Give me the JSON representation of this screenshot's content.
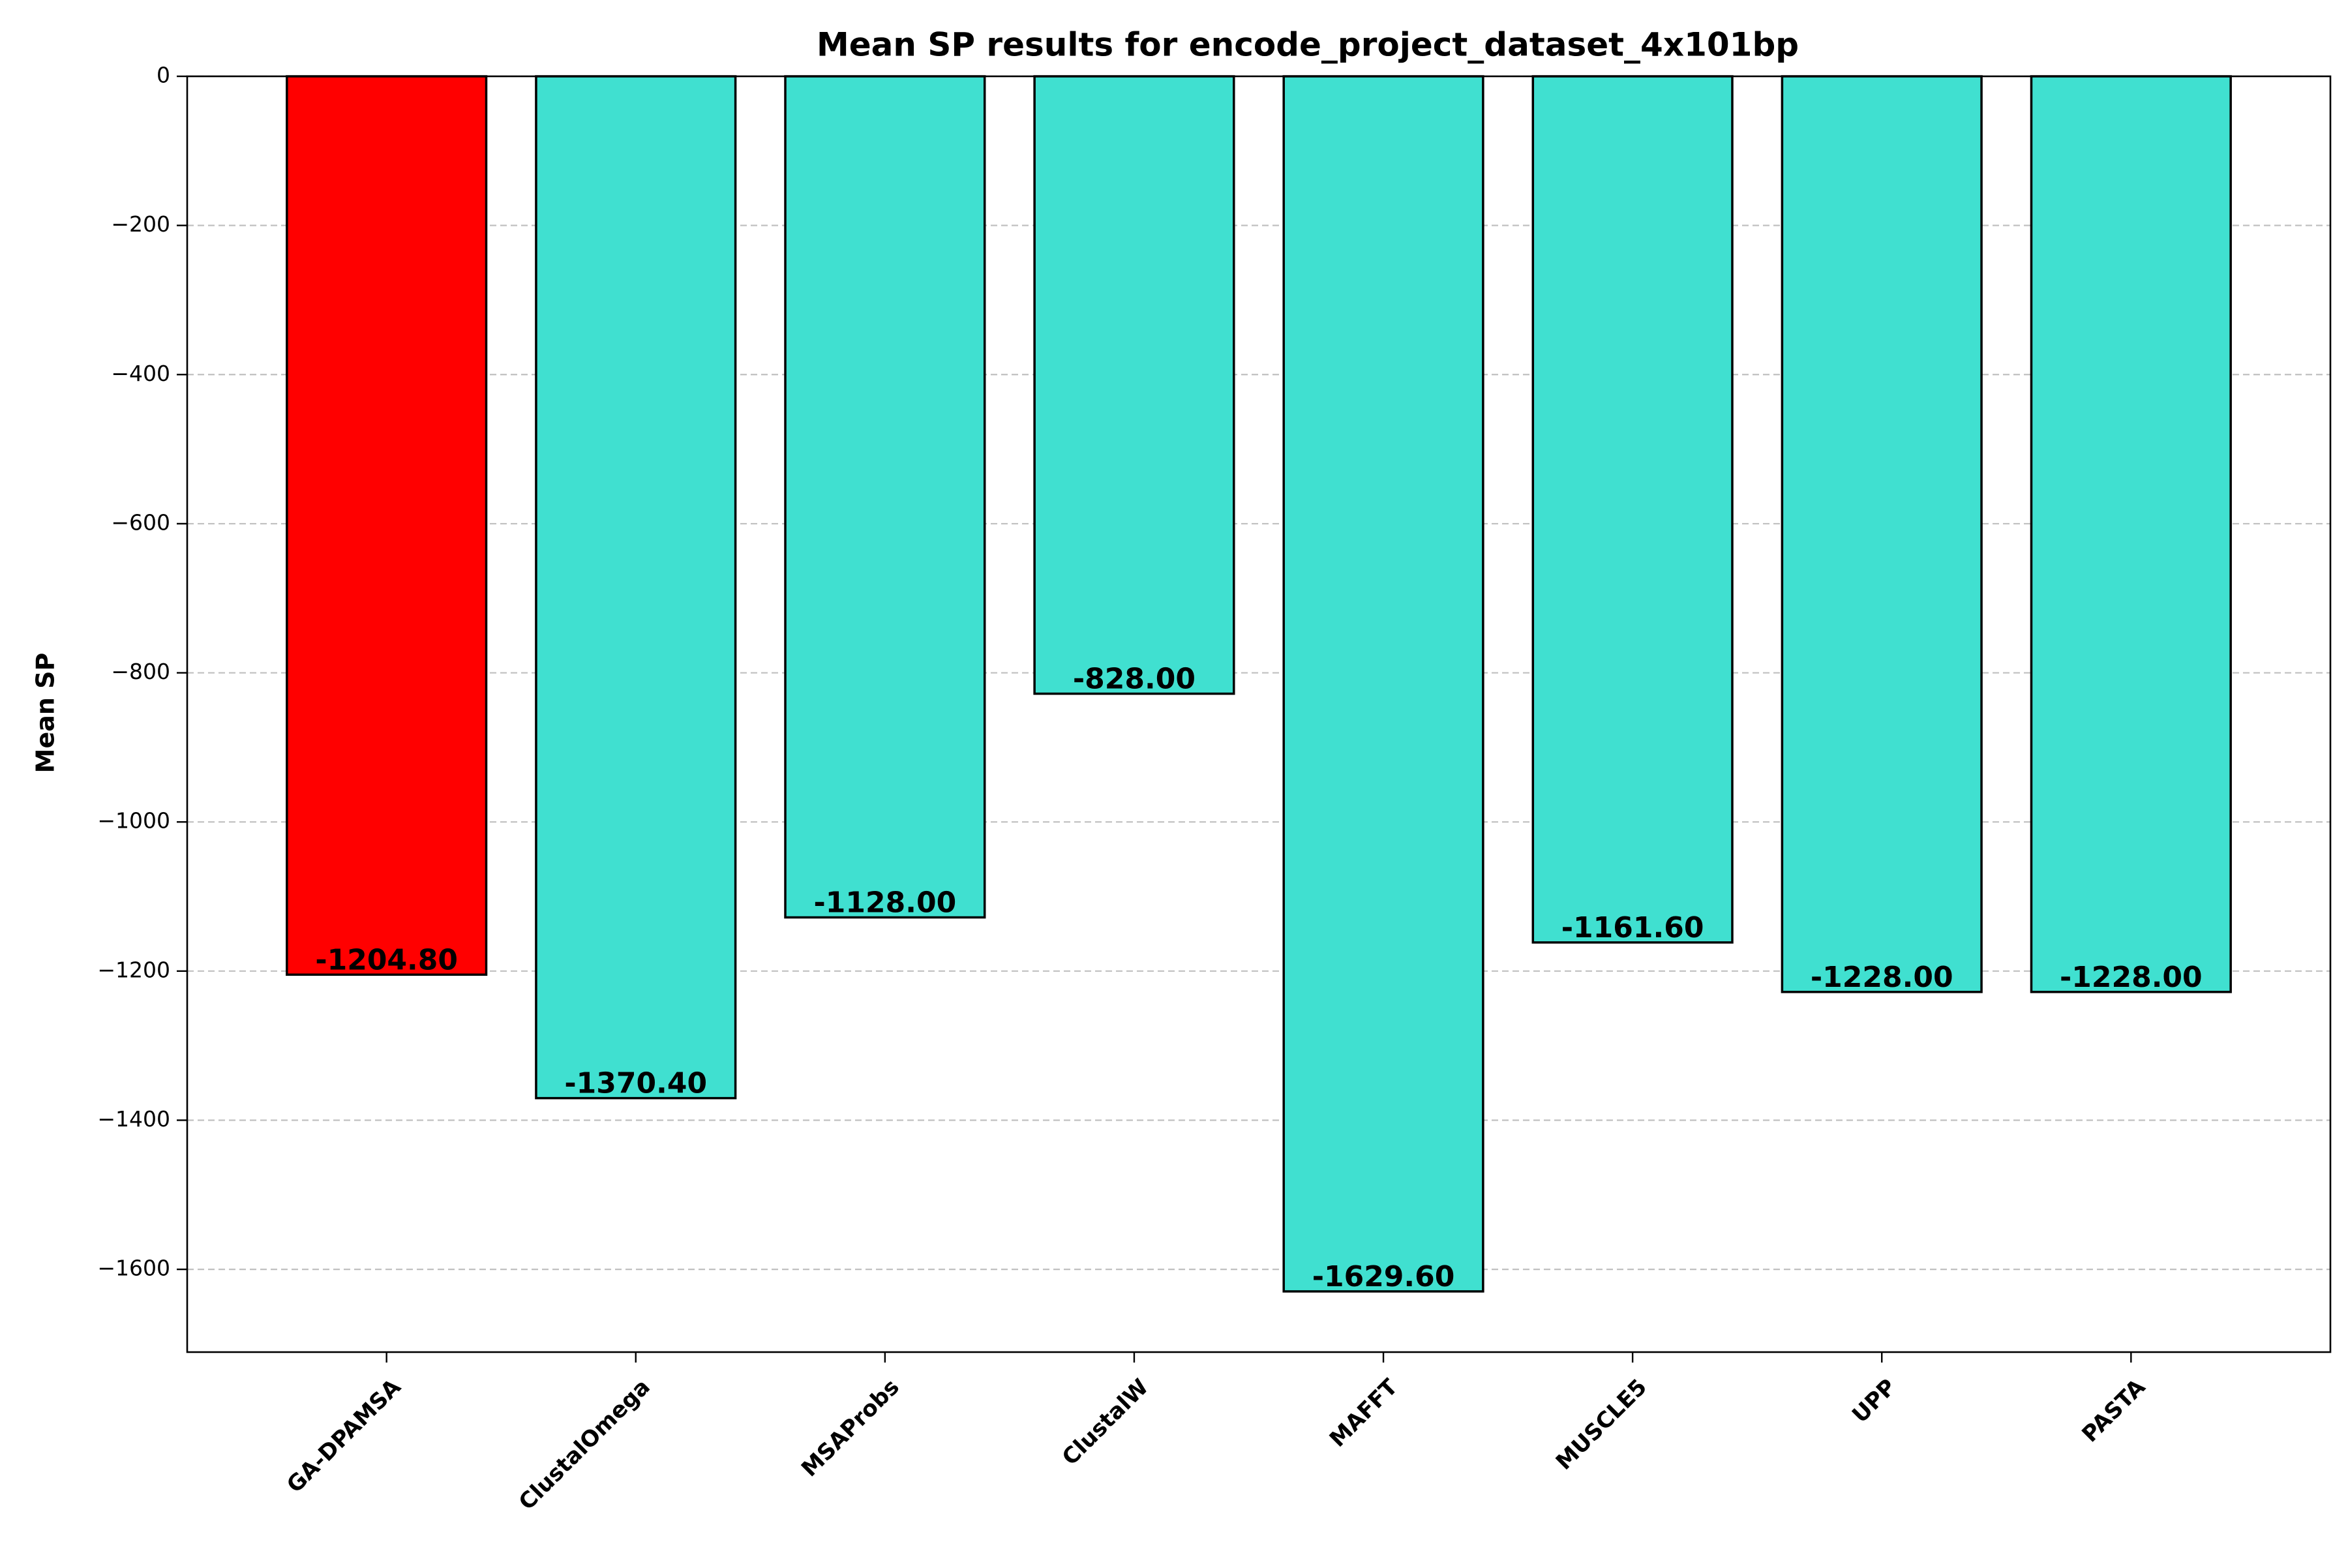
{
  "chart_data": {
    "type": "bar",
    "title": "Mean SP results for encode_project_dataset_4x101bp",
    "xlabel": "",
    "ylabel": "Mean SP",
    "categories": [
      "GA-DPAMSA",
      "ClustalOmega",
      "MSAProbs",
      "ClustalW",
      "MAFFT",
      "MUSCLE5",
      "UPP",
      "PASTA"
    ],
    "values": [
      -1204.8,
      -1370.4,
      -1128.0,
      -828.0,
      -1629.6,
      -1161.6,
      -1228.0,
      -1228.0
    ],
    "value_labels": [
      "-1204.80",
      "-1370.40",
      "-1128.00",
      "-828.00",
      "-1629.60",
      "-1161.60",
      "-1228.00",
      "-1228.00"
    ],
    "bar_colors": [
      "#ff0000",
      "#40e0d0",
      "#40e0d0",
      "#40e0d0",
      "#40e0d0",
      "#40e0d0",
      "#40e0d0",
      "#40e0d0"
    ],
    "ylim": [
      -1711,
      0
    ],
    "yticks": [
      0,
      -200,
      -400,
      -600,
      -800,
      -1000,
      -1200,
      -1400,
      -1600
    ],
    "ytick_labels": [
      "0",
      "−200",
      "−400",
      "−600",
      "−800",
      "−1000",
      "−1200",
      "−1400",
      "−1600"
    ],
    "grid": "y dashed",
    "legend": "none"
  }
}
